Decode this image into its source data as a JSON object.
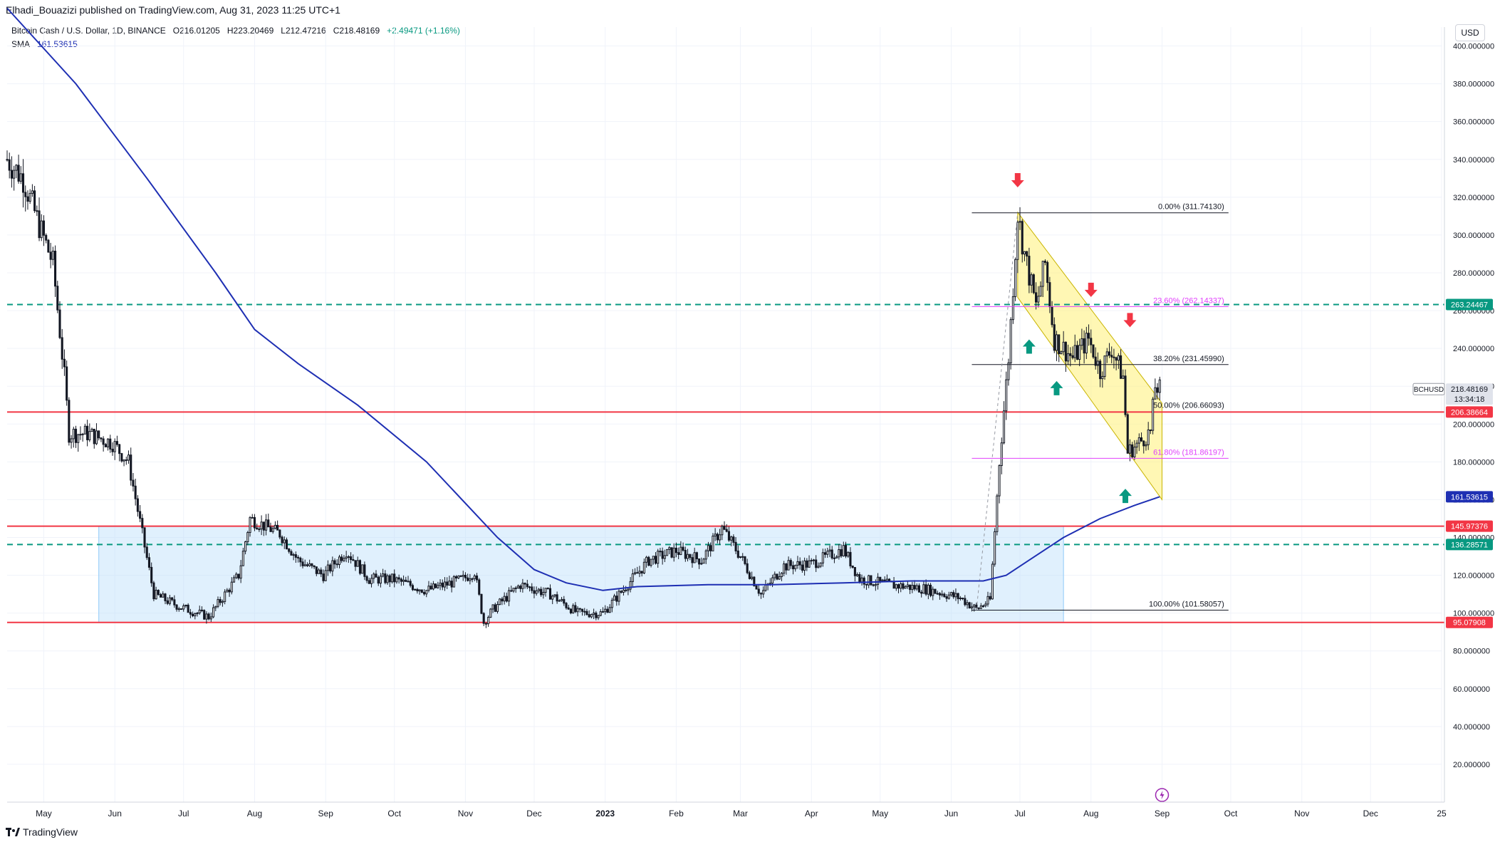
{
  "header": {
    "published": "Elhadi_Bouazizi published on TradingView.com, Aug 31, 2023 11:25 UTC+1"
  },
  "legend": {
    "symbol": "Bitcoin Cash / U.S. Dollar, 1D, BINANCE",
    "o_label": "O",
    "o": "216.01205",
    "h_label": "H",
    "h": "223.20469",
    "l_label": "L",
    "l": "212.47216",
    "c_label": "C",
    "c": "218.48169",
    "change": "+2.49471 (+1.16%)",
    "sma_label": "SMA",
    "sma_value": "161.53615"
  },
  "currency_button": "USD",
  "footer": {
    "brand": "TradingView"
  },
  "colors": {
    "up": "#089981",
    "down": "#f23645",
    "candle": "#131722",
    "sma": "#1e2fb3",
    "red_line": "#f23645",
    "teal_dash": "#089981",
    "box_fill": "#bbdefb",
    "channel_fill": "#fff176",
    "fib_pink": "#e040fb",
    "fib_black": "#131722"
  },
  "chart_data": {
    "type": "candlestick",
    "instrument": "BCHUSD",
    "title": "Bitcoin Cash / U.S. Dollar, 1D, BINANCE",
    "ylim": [
      0,
      410
    ],
    "y_ticks": [
      "20.000000",
      "40.000000",
      "60.000000",
      "80.000000",
      "100.000000",
      "120.000000",
      "140.000000",
      "160.000000",
      "180.000000",
      "200.000000",
      "220.000000",
      "240.000000",
      "260.000000",
      "280.000000",
      "300.000000",
      "320.000000",
      "340.000000",
      "360.000000",
      "380.000000",
      "400.000000"
    ],
    "y_tick_values": [
      20,
      40,
      60,
      80,
      100,
      120,
      140,
      160,
      180,
      200,
      220,
      240,
      260,
      280,
      300,
      320,
      340,
      360,
      380,
      400
    ],
    "x_range": [
      "2022-04-15",
      "2024-01-01"
    ],
    "x_ticks": [
      {
        "label": "May",
        "date": "2022-05-01"
      },
      {
        "label": "Jun",
        "date": "2022-06-01"
      },
      {
        "label": "Jul",
        "date": "2022-07-01"
      },
      {
        "label": "Aug",
        "date": "2022-08-01"
      },
      {
        "label": "Sep",
        "date": "2022-09-01"
      },
      {
        "label": "Oct",
        "date": "2022-10-01"
      },
      {
        "label": "Nov",
        "date": "2022-11-01"
      },
      {
        "label": "Dec",
        "date": "2022-12-01"
      },
      {
        "label": "2023",
        "date": "2023-01-01"
      },
      {
        "label": "Feb",
        "date": "2023-02-01"
      },
      {
        "label": "Mar",
        "date": "2023-03-01"
      },
      {
        "label": "Apr",
        "date": "2023-04-01"
      },
      {
        "label": "May",
        "date": "2023-05-01"
      },
      {
        "label": "Jun",
        "date": "2023-06-01"
      },
      {
        "label": "Jul",
        "date": "2023-07-01"
      },
      {
        "label": "Aug",
        "date": "2023-08-01"
      },
      {
        "label": "Sep",
        "date": "2023-09-01"
      },
      {
        "label": "Oct",
        "date": "2023-10-01"
      },
      {
        "label": "Nov",
        "date": "2023-11-01"
      },
      {
        "label": "Dec",
        "date": "2023-12-01"
      },
      {
        "label": "25",
        "date": "2024-01-01"
      }
    ],
    "price_path": [
      [
        "2022-04-15",
        340
      ],
      [
        "2022-04-22",
        330
      ],
      [
        "2022-04-29",
        305
      ],
      [
        "2022-05-05",
        285
      ],
      [
        "2022-05-10",
        225
      ],
      [
        "2022-05-12",
        195
      ],
      [
        "2022-05-20",
        195
      ],
      [
        "2022-05-31",
        190
      ],
      [
        "2022-06-07",
        180
      ],
      [
        "2022-06-12",
        148
      ],
      [
        "2022-06-18",
        110
      ],
      [
        "2022-06-30",
        103
      ],
      [
        "2022-07-12",
        98
      ],
      [
        "2022-07-25",
        120
      ],
      [
        "2022-07-30",
        150
      ],
      [
        "2022-08-12",
        142
      ],
      [
        "2022-08-20",
        128
      ],
      [
        "2022-08-31",
        120
      ],
      [
        "2022-09-10",
        133
      ],
      [
        "2022-09-20",
        118
      ],
      [
        "2022-09-30",
        118
      ],
      [
        "2022-10-15",
        112
      ],
      [
        "2022-10-31",
        118
      ],
      [
        "2022-11-05",
        122
      ],
      [
        "2022-11-09",
        95
      ],
      [
        "2022-11-13",
        102
      ],
      [
        "2022-11-25",
        115
      ],
      [
        "2022-12-08",
        110
      ],
      [
        "2022-12-20",
        100
      ],
      [
        "2022-12-31",
        100
      ],
      [
        "2023-01-10",
        114
      ],
      [
        "2023-01-20",
        128
      ],
      [
        "2023-02-01",
        133
      ],
      [
        "2023-02-12",
        128
      ],
      [
        "2023-02-21",
        145
      ],
      [
        "2023-03-01",
        130
      ],
      [
        "2023-03-10",
        110
      ],
      [
        "2023-03-20",
        125
      ],
      [
        "2023-04-01",
        126
      ],
      [
        "2023-04-15",
        134
      ],
      [
        "2023-04-22",
        118
      ],
      [
        "2023-05-05",
        115
      ],
      [
        "2023-05-20",
        113
      ],
      [
        "2023-06-05",
        108
      ],
      [
        "2023-06-12",
        102
      ],
      [
        "2023-06-18",
        107
      ],
      [
        "2023-06-22",
        180
      ],
      [
        "2023-06-26",
        235
      ],
      [
        "2023-06-30",
        311
      ],
      [
        "2023-07-03",
        290
      ],
      [
        "2023-07-08",
        262
      ],
      [
        "2023-07-12",
        285
      ],
      [
        "2023-07-16",
        245
      ],
      [
        "2023-07-24",
        235
      ],
      [
        "2023-07-31",
        245
      ],
      [
        "2023-08-05",
        228
      ],
      [
        "2023-08-10",
        240
      ],
      [
        "2023-08-15",
        225
      ],
      [
        "2023-08-17",
        185
      ],
      [
        "2023-08-22",
        190
      ],
      [
        "2023-08-27",
        196
      ],
      [
        "2023-08-29",
        220
      ],
      [
        "2023-08-31",
        218.48
      ]
    ],
    "sma_path": [
      [
        "2022-04-15",
        420
      ],
      [
        "2022-05-15",
        380
      ],
      [
        "2022-06-15",
        330
      ],
      [
        "2022-07-15",
        280
      ],
      [
        "2022-08-01",
        250
      ],
      [
        "2022-08-20",
        232
      ],
      [
        "2022-09-15",
        210
      ],
      [
        "2022-10-15",
        180
      ],
      [
        "2022-11-15",
        140
      ],
      [
        "2022-12-01",
        123
      ],
      [
        "2022-12-15",
        116
      ],
      [
        "2022-12-31",
        112
      ],
      [
        "2023-01-15",
        114
      ],
      [
        "2023-02-15",
        115
      ],
      [
        "2023-03-15",
        115
      ],
      [
        "2023-04-15",
        116
      ],
      [
        "2023-05-15",
        117
      ],
      [
        "2023-06-15",
        117
      ],
      [
        "2023-06-25",
        120
      ],
      [
        "2023-07-05",
        128
      ],
      [
        "2023-07-20",
        140
      ],
      [
        "2023-08-05",
        150
      ],
      [
        "2023-08-20",
        157
      ],
      [
        "2023-08-31",
        161.53615
      ]
    ],
    "horizontal_levels": [
      {
        "price": 263.24467,
        "style": "dashed",
        "color": "#089981",
        "label": "263.24467",
        "label_bg": "#089981"
      },
      {
        "price": 206.38664,
        "style": "solid",
        "color": "#f23645",
        "label": "206.38664",
        "label_bg": "#f23645"
      },
      {
        "price": 145.97376,
        "style": "solid",
        "color": "#f23645",
        "label": "145.97376",
        "label_bg": "#f23645"
      },
      {
        "price": 136.28571,
        "style": "dashed",
        "color": "#089981",
        "label": "136.28571",
        "label_bg": "#089981"
      },
      {
        "price": 95.07908,
        "style": "solid",
        "color": "#f23645",
        "label": "95.07908",
        "label_bg": "#f23645"
      }
    ],
    "price_labels": [
      {
        "symbol": "BCHUSD",
        "price": 218.48169,
        "label": "218.48169",
        "countdown": "13:34:18"
      },
      {
        "price": 161.53615,
        "label": "161.53615",
        "bg": "#1e2fb3"
      }
    ],
    "range_box": {
      "from": "2022-05-25",
      "to": "2023-07-20",
      "top": 145.97,
      "bottom": 95.08
    },
    "fibonacci": {
      "from": "2023-06-10",
      "to": "2023-09-30",
      "levels": [
        {
          "ratio": "0.00%",
          "price": 311.7413,
          "label": "0.00% (311.74130)",
          "color": "#131722"
        },
        {
          "ratio": "23.60%",
          "price": 262.14337,
          "label": "23.60% (262.14337)",
          "color": "#e040fb"
        },
        {
          "ratio": "38.20%",
          "price": 231.4599,
          "label": "38.20% (231.45990)",
          "color": "#131722"
        },
        {
          "ratio": "50.00%",
          "price": 206.66093,
          "label": "50.00% (206.66093)",
          "color": "#131722",
          "no_line": true
        },
        {
          "ratio": "61.80%",
          "price": 181.86197,
          "label": "61.80% (181.86197)",
          "color": "#e040fb"
        },
        {
          "ratio": "100.00%",
          "price": 101.58057,
          "label": "100.00% (101.58057)",
          "color": "#131722"
        }
      ]
    },
    "channel": {
      "upper": [
        [
          "2023-06-30",
          312
        ],
        [
          "2023-09-01",
          211
        ]
      ],
      "lower": [
        [
          "2023-06-30",
          267
        ],
        [
          "2023-09-01",
          160
        ]
      ]
    },
    "arrows": [
      {
        "date": "2023-06-30",
        "price": 329,
        "direction": "down",
        "color": "#f23645"
      },
      {
        "date": "2023-08-01",
        "price": 271,
        "direction": "down",
        "color": "#f23645"
      },
      {
        "date": "2023-08-18",
        "price": 255,
        "direction": "down",
        "color": "#f23645"
      },
      {
        "date": "2023-07-05",
        "price": 241,
        "direction": "up",
        "color": "#089981"
      },
      {
        "date": "2023-07-17",
        "price": 219,
        "direction": "up",
        "color": "#089981"
      },
      {
        "date": "2023-08-16",
        "price": 162,
        "direction": "up",
        "color": "#089981"
      }
    ]
  }
}
